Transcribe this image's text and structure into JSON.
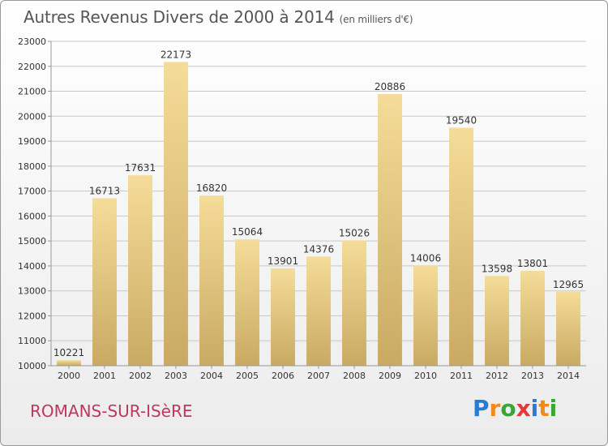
{
  "title": "Autres Revenus Divers de 2000 à 2014",
  "subtitle": "(en milliers d'€)",
  "location": "ROMANS-SUR-ISèRE",
  "logo": {
    "letters": [
      "P",
      "r",
      "o",
      "x",
      "i",
      "t",
      "i"
    ],
    "colors": [
      "#2a7bd4",
      "#f08a1c",
      "#3aa635",
      "#e23a3a",
      "#2a7bd4",
      "#f08a1c",
      "#3aa635"
    ]
  },
  "chart_data": {
    "type": "bar",
    "categories": [
      "2000",
      "2001",
      "2002",
      "2003",
      "2004",
      "2005",
      "2006",
      "2007",
      "2008",
      "2009",
      "2010",
      "2011",
      "2012",
      "2013",
      "2014"
    ],
    "values": [
      10221,
      16713,
      17631,
      22173,
      16820,
      15064,
      13901,
      14376,
      15026,
      20886,
      14006,
      19540,
      13598,
      13801,
      12965
    ],
    "ylim": [
      10000,
      23000
    ],
    "yticks": [
      10000,
      11000,
      12000,
      13000,
      14000,
      15000,
      16000,
      17000,
      18000,
      19000,
      20000,
      21000,
      22000,
      23000
    ],
    "grid": true,
    "colors": {
      "bar_top": "#f5dc98",
      "bar_bottom": "#c9aa63",
      "grid": "#c8c8c8",
      "axis": "#999999",
      "text": "#333333"
    }
  }
}
